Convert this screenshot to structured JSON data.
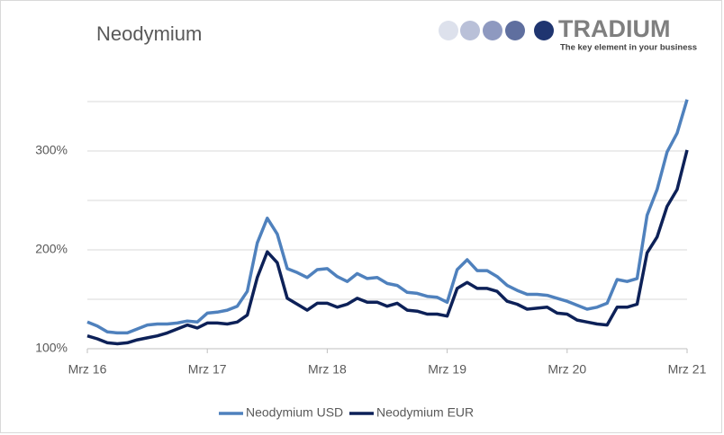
{
  "chart_data": {
    "type": "line",
    "title": "Neodymium",
    "categories": [
      "Mrz 16",
      null,
      null,
      null,
      null,
      null,
      null,
      null,
      null,
      null,
      null,
      null,
      "Mrz 17",
      null,
      null,
      null,
      null,
      null,
      null,
      null,
      null,
      null,
      null,
      null,
      "Mrz 18",
      null,
      null,
      null,
      null,
      null,
      null,
      null,
      null,
      null,
      null,
      null,
      "Mrz 19",
      null,
      null,
      null,
      null,
      null,
      null,
      null,
      null,
      null,
      null,
      null,
      "Mrz 20",
      null,
      null,
      null,
      null,
      null,
      null,
      null,
      null,
      null,
      null,
      null,
      "Mrz 21"
    ],
    "series": [
      {
        "name": "Neodymium USD",
        "color": "#4f81bd",
        "values": [
          127,
          123,
          117,
          116,
          116,
          120,
          124,
          125,
          125,
          126,
          128,
          127,
          136,
          137,
          139,
          143,
          158,
          207,
          232,
          216,
          181,
          177,
          172,
          180,
          181,
          173,
          168,
          176,
          171,
          172,
          166,
          164,
          157,
          156,
          153,
          152,
          147,
          180,
          190,
          179,
          179,
          173,
          164,
          159,
          155,
          155,
          154,
          151,
          148,
          144,
          140,
          142,
          146,
          170,
          168,
          171,
          235,
          261,
          299,
          318,
          352
        ]
      },
      {
        "name": "Neodymium EUR",
        "color": "#0d2158",
        "values": [
          113,
          110,
          106,
          105,
          106,
          109,
          111,
          113,
          116,
          120,
          124,
          121,
          126,
          126,
          125,
          127,
          134,
          172,
          198,
          187,
          151,
          145,
          139,
          146,
          146,
          142,
          145,
          151,
          147,
          147,
          143,
          146,
          139,
          138,
          135,
          135,
          133,
          161,
          167,
          161,
          161,
          158,
          148,
          145,
          140,
          141,
          142,
          136,
          135,
          129,
          127,
          125,
          124,
          142,
          142,
          145,
          197,
          213,
          244,
          261,
          301
        ]
      }
    ],
    "ylim": [
      100,
      360
    ],
    "yticks": [
      {
        "value": 100,
        "label": "100%"
      },
      {
        "value": 200,
        "label": "200%"
      },
      {
        "value": 300,
        "label": "300%"
      }
    ],
    "minor_gridlines": [
      150,
      250,
      350
    ],
    "grid": true,
    "legend": "bottom"
  },
  "logo": {
    "name": "TRADIUM",
    "tagline": "The key element in your business"
  }
}
